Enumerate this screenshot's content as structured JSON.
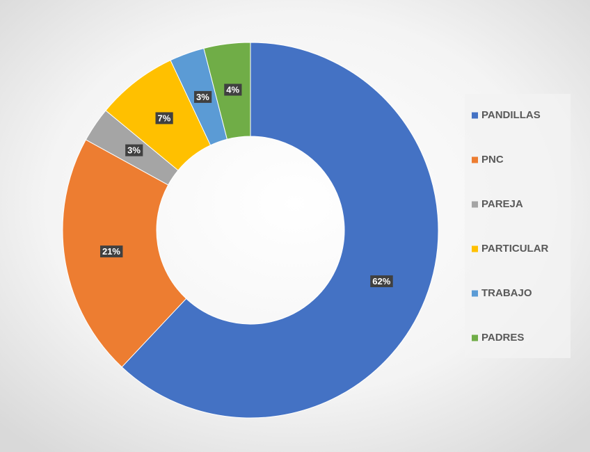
{
  "chart_data": {
    "type": "donut",
    "categories": [
      "PANDILLAS",
      "PNC",
      "PAREJA",
      "PARTICULAR",
      "TRABAJO",
      "PADRES"
    ],
    "values": [
      62,
      21,
      3,
      7,
      3,
      4
    ],
    "value_labels": [
      "62%",
      "21%",
      "3%",
      "7%",
      "3%",
      "4%"
    ],
    "colors": [
      "#4472c4",
      "#ed7d31",
      "#a5a5a5",
      "#ffc000",
      "#5b9bd5",
      "#70ad47"
    ],
    "legend": "right"
  }
}
